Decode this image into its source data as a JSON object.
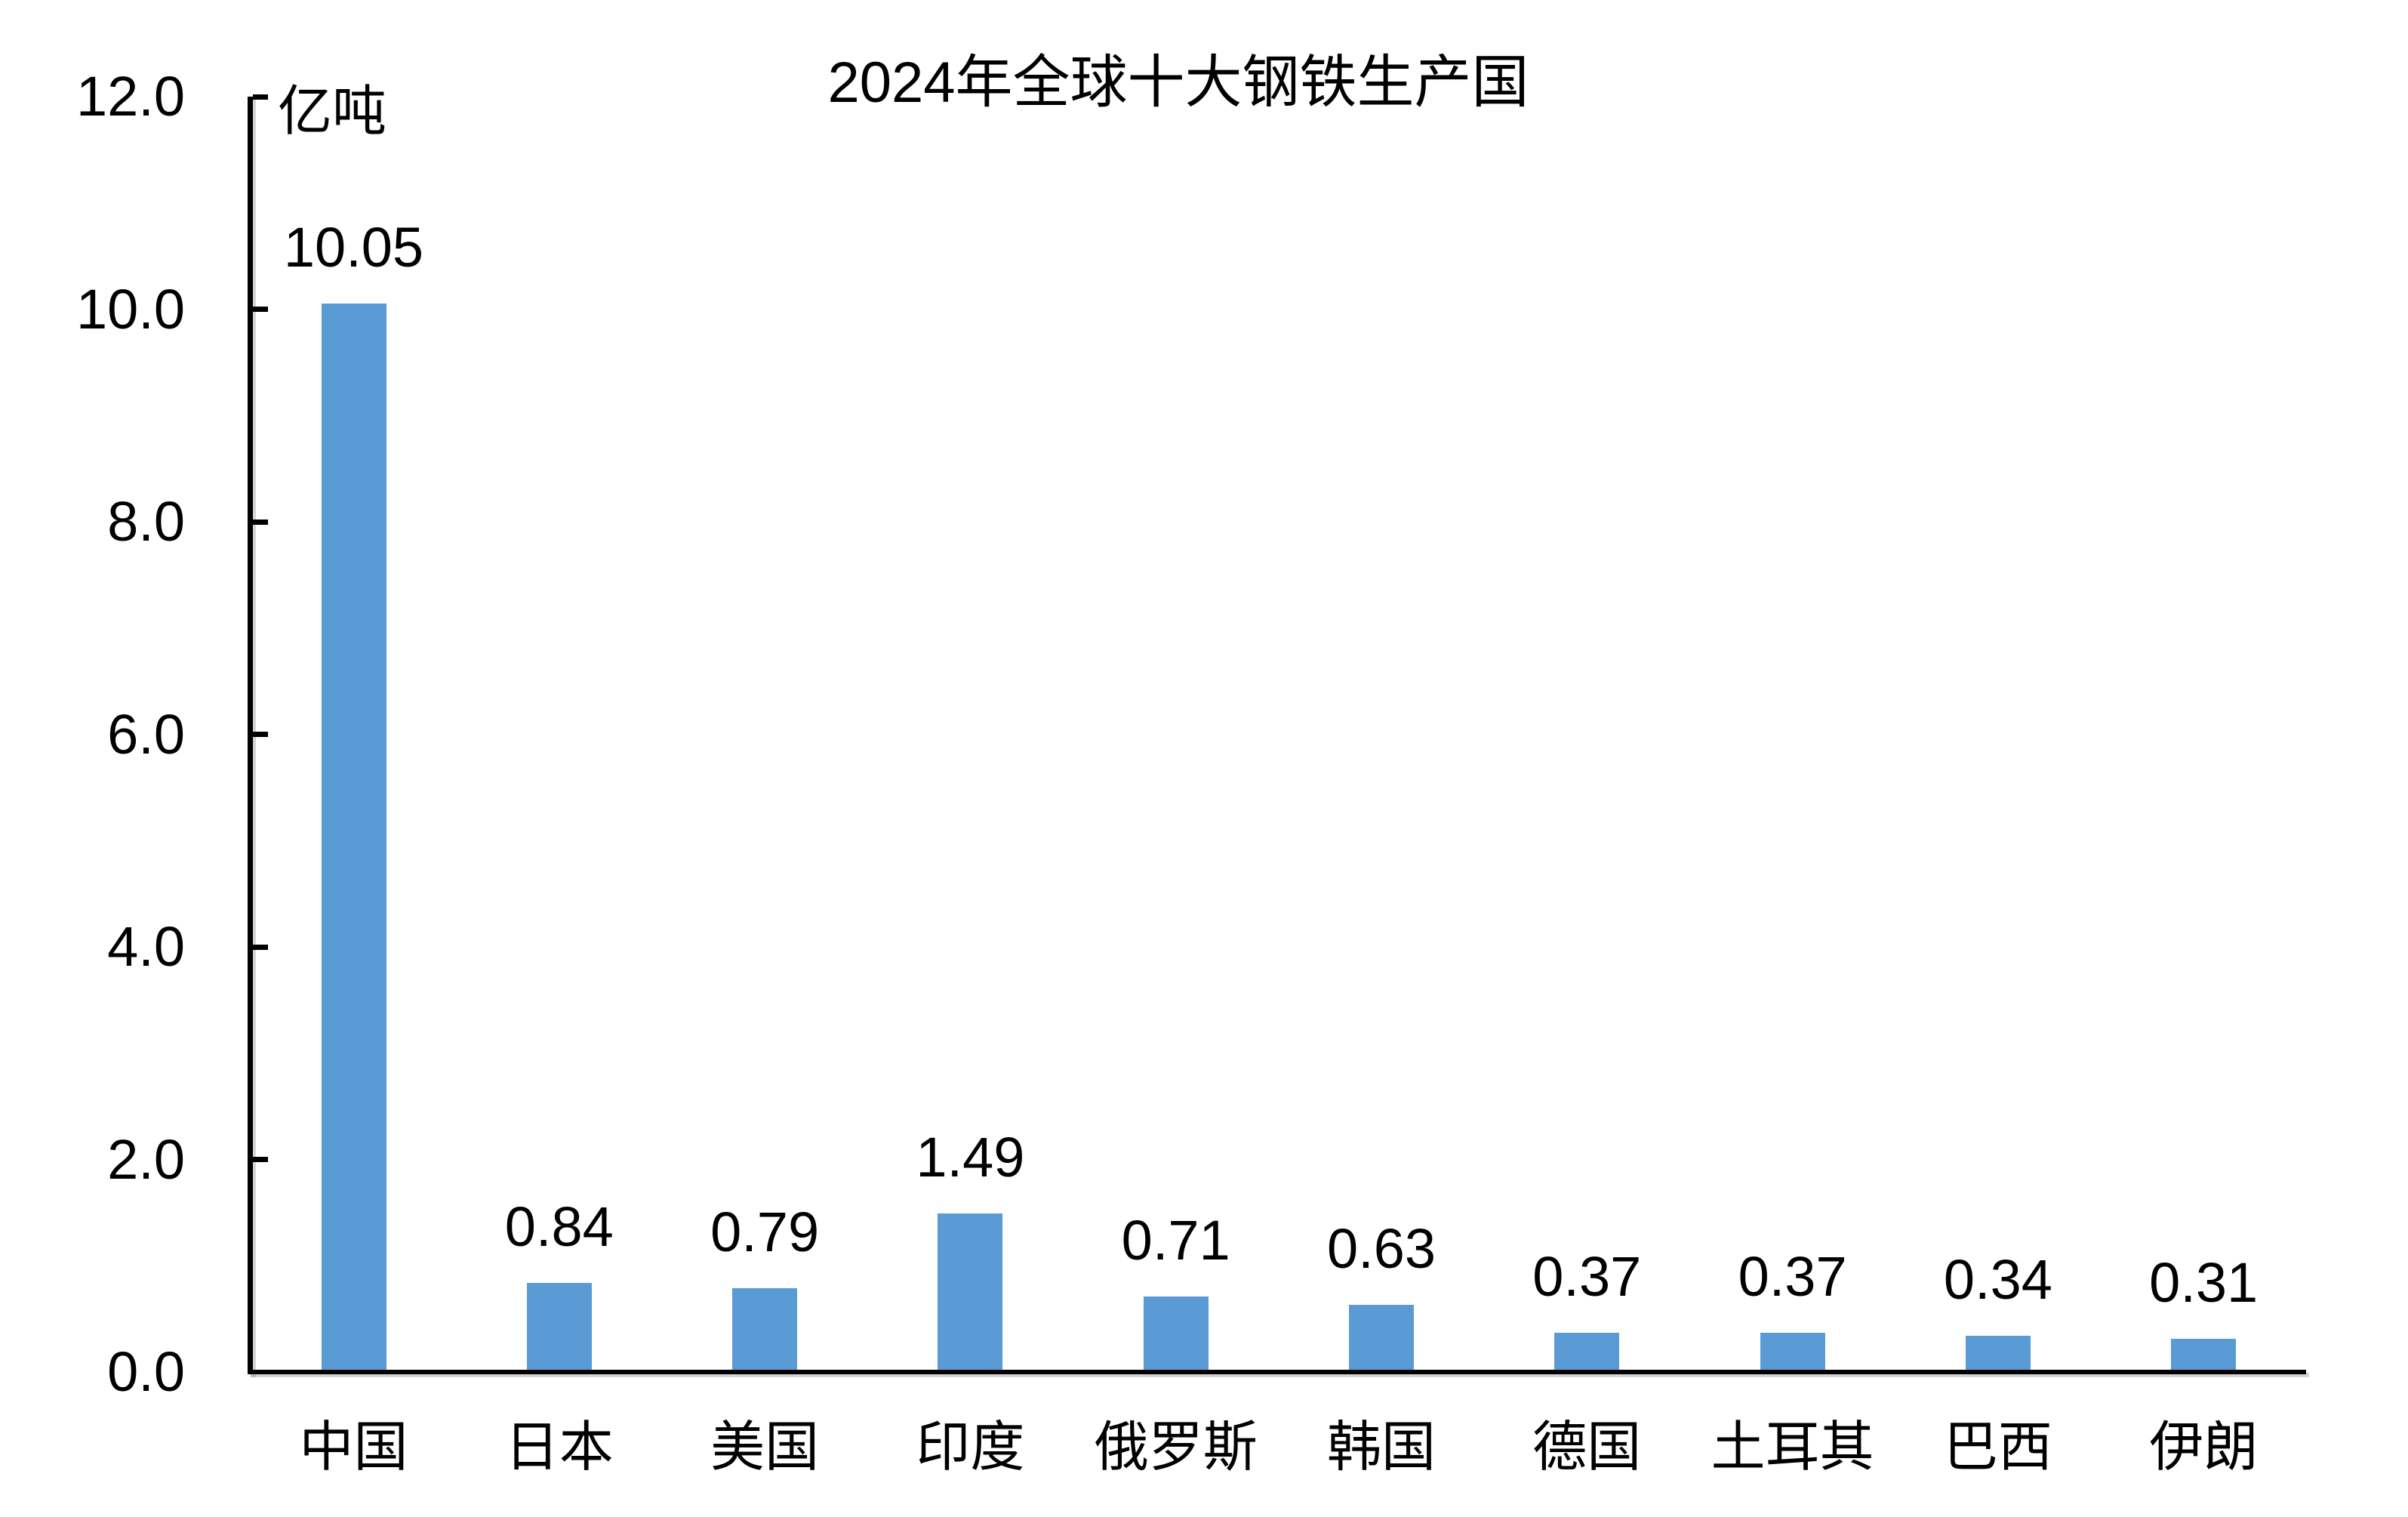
{
  "title": "2024年全球十大钢铁生产国",
  "unit_label": "亿吨",
  "chart_data": {
    "type": "bar",
    "title": "2024年全球十大钢铁生产国",
    "ylabel": "亿吨",
    "xlabel": "",
    "categories": [
      "中国",
      "日本",
      "美国",
      "印度",
      "俄罗斯",
      "韩国",
      "德国",
      "土耳其",
      "巴西",
      "伊朗"
    ],
    "values": [
      10.05,
      0.84,
      0.79,
      1.49,
      0.71,
      0.63,
      0.37,
      0.37,
      0.34,
      0.31
    ],
    "data_labels": [
      "10.05",
      "0.84",
      "0.79",
      "1.49",
      "0.71",
      "0.63",
      "0.37",
      "0.37",
      "0.34",
      "0.31"
    ],
    "ylim": [
      0,
      12
    ],
    "ytick_labels": [
      "0.0",
      "2.0",
      "4.0",
      "6.0",
      "8.0",
      "10.0",
      "12.0"
    ],
    "grid": false,
    "legend_position": "none",
    "bar_color": "#5B9BD5",
    "axis_color": "#000000",
    "text_color": "#000000",
    "background_color": "#FFFFFF"
  }
}
